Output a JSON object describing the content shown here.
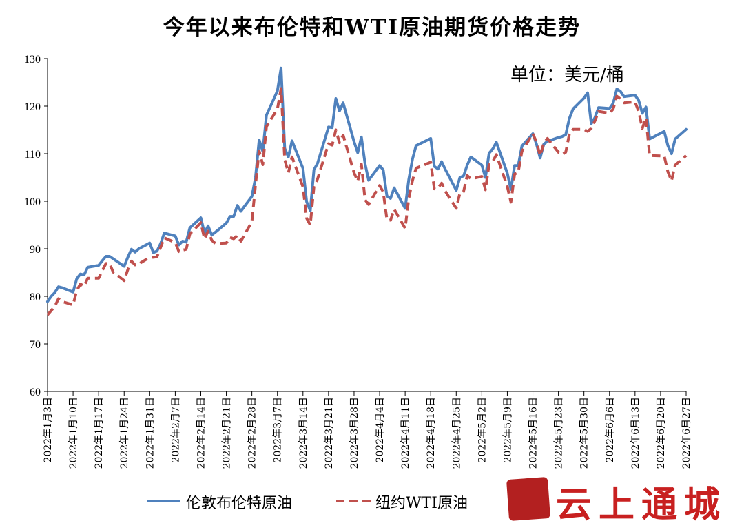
{
  "chart_data": {
    "type": "line",
    "title": "今年以来布伦特和WTI原油期货价格走势",
    "unit": "单位：美元/桶",
    "ylim": [
      60,
      130
    ],
    "yticks": [
      60,
      70,
      80,
      90,
      100,
      110,
      120,
      130
    ],
    "xlim": [
      "2022-01-03",
      "2022-06-27"
    ],
    "xtick_labels": [
      "2022年1月3日",
      "2022年1月10日",
      "2022年1月17日",
      "2022年1月24日",
      "2022年1月31日",
      "2022年2月7日",
      "2022年2月14日",
      "2022年2月21日",
      "2022年2月28日",
      "2022年3月7日",
      "2022年3月14日",
      "2022年3月21日",
      "2022年3月28日",
      "2022年4月4日",
      "2022年4月11日",
      "2022年4月18日",
      "2022年4月25日",
      "2022年5月2日",
      "2022年5月9日",
      "2022年5月16日",
      "2022年5月23日",
      "2022年5月30日",
      "2022年6月6日",
      "2022年6月13日",
      "2022年6月20日",
      "2022年6月27日"
    ],
    "grid": false,
    "legend_position": "bottom",
    "series": [
      {
        "name": "伦敦布伦特原油",
        "color": "#4f81bd",
        "style": "solid",
        "points": [
          [
            "2022-01-03",
            78.9
          ],
          [
            "2022-01-04",
            80.0
          ],
          [
            "2022-01-05",
            80.8
          ],
          [
            "2022-01-06",
            82.0
          ],
          [
            "2022-01-07",
            81.8
          ],
          [
            "2022-01-10",
            80.9
          ],
          [
            "2022-01-11",
            83.7
          ],
          [
            "2022-01-12",
            84.7
          ],
          [
            "2022-01-13",
            84.5
          ],
          [
            "2022-01-14",
            86.1
          ],
          [
            "2022-01-17",
            86.5
          ],
          [
            "2022-01-18",
            87.5
          ],
          [
            "2022-01-19",
            88.4
          ],
          [
            "2022-01-20",
            88.4
          ],
          [
            "2022-01-21",
            87.9
          ],
          [
            "2022-01-24",
            86.3
          ],
          [
            "2022-01-25",
            88.2
          ],
          [
            "2022-01-26",
            89.9
          ],
          [
            "2022-01-27",
            89.3
          ],
          [
            "2022-01-28",
            90.0
          ],
          [
            "2022-01-31",
            91.2
          ],
          [
            "2022-02-01",
            89.2
          ],
          [
            "2022-02-02",
            89.5
          ],
          [
            "2022-02-03",
            91.1
          ],
          [
            "2022-02-04",
            93.3
          ],
          [
            "2022-02-07",
            92.7
          ],
          [
            "2022-02-08",
            90.8
          ],
          [
            "2022-02-09",
            91.6
          ],
          [
            "2022-02-10",
            91.4
          ],
          [
            "2022-02-11",
            94.4
          ],
          [
            "2022-02-14",
            96.5
          ],
          [
            "2022-02-15",
            93.3
          ],
          [
            "2022-02-16",
            94.8
          ],
          [
            "2022-02-17",
            92.9
          ],
          [
            "2022-02-18",
            93.5
          ],
          [
            "2022-02-21",
            95.4
          ],
          [
            "2022-02-22",
            96.8
          ],
          [
            "2022-02-23",
            96.8
          ],
          [
            "2022-02-24",
            99.1
          ],
          [
            "2022-02-25",
            97.9
          ],
          [
            "2022-02-28",
            101.0
          ],
          [
            "2022-03-01",
            104.97
          ],
          [
            "2022-03-02",
            112.9
          ],
          [
            "2022-03-03",
            110.5
          ],
          [
            "2022-03-04",
            118.1
          ],
          [
            "2022-03-07",
            123.2
          ],
          [
            "2022-03-08",
            128.0
          ],
          [
            "2022-03-09",
            111.1
          ],
          [
            "2022-03-10",
            109.3
          ],
          [
            "2022-03-11",
            112.7
          ],
          [
            "2022-03-14",
            106.9
          ],
          [
            "2022-03-15",
            99.9
          ],
          [
            "2022-03-16",
            98.0
          ],
          [
            "2022-03-17",
            106.6
          ],
          [
            "2022-03-18",
            108.0
          ],
          [
            "2022-03-21",
            115.6
          ],
          [
            "2022-03-22",
            115.5
          ],
          [
            "2022-03-23",
            121.6
          ],
          [
            "2022-03-24",
            119.0
          ],
          [
            "2022-03-25",
            120.7
          ],
          [
            "2022-03-28",
            112.5
          ],
          [
            "2022-03-29",
            110.2
          ],
          [
            "2022-03-30",
            113.5
          ],
          [
            "2022-03-31",
            107.9
          ],
          [
            "2022-04-01",
            104.4
          ],
          [
            "2022-04-04",
            107.5
          ],
          [
            "2022-04-05",
            106.6
          ],
          [
            "2022-04-06",
            101.1
          ],
          [
            "2022-04-07",
            100.6
          ],
          [
            "2022-04-08",
            102.8
          ],
          [
            "2022-04-11",
            98.5
          ],
          [
            "2022-04-12",
            104.6
          ],
          [
            "2022-04-13",
            108.8
          ],
          [
            "2022-04-14",
            111.7
          ],
          [
            "2022-04-18",
            113.2
          ],
          [
            "2022-04-19",
            107.3
          ],
          [
            "2022-04-20",
            106.8
          ],
          [
            "2022-04-21",
            108.3
          ],
          [
            "2022-04-22",
            106.7
          ],
          [
            "2022-04-25",
            102.3
          ],
          [
            "2022-04-26",
            105.0
          ],
          [
            "2022-04-27",
            105.3
          ],
          [
            "2022-04-28",
            107.6
          ],
          [
            "2022-04-29",
            109.3
          ],
          [
            "2022-05-02",
            107.6
          ],
          [
            "2022-05-03",
            105.0
          ],
          [
            "2022-05-04",
            110.1
          ],
          [
            "2022-05-05",
            111.0
          ],
          [
            "2022-05-06",
            112.4
          ],
          [
            "2022-05-09",
            105.9
          ],
          [
            "2022-05-10",
            102.5
          ],
          [
            "2022-05-11",
            107.5
          ],
          [
            "2022-05-12",
            107.5
          ],
          [
            "2022-05-13",
            111.6
          ],
          [
            "2022-05-16",
            114.2
          ],
          [
            "2022-05-17",
            112.0
          ],
          [
            "2022-05-18",
            109.1
          ],
          [
            "2022-05-19",
            112.0
          ],
          [
            "2022-05-20",
            112.6
          ],
          [
            "2022-05-23",
            113.4
          ],
          [
            "2022-05-24",
            113.6
          ],
          [
            "2022-05-25",
            114.0
          ],
          [
            "2022-05-26",
            117.4
          ],
          [
            "2022-05-27",
            119.4
          ],
          [
            "2022-05-30",
            121.7
          ],
          [
            "2022-05-31",
            122.8
          ],
          [
            "2022-06-01",
            116.3
          ],
          [
            "2022-06-02",
            117.6
          ],
          [
            "2022-06-03",
            119.7
          ],
          [
            "2022-06-06",
            119.5
          ],
          [
            "2022-06-07",
            120.6
          ],
          [
            "2022-06-08",
            123.6
          ],
          [
            "2022-06-09",
            123.1
          ],
          [
            "2022-06-10",
            122.0
          ],
          [
            "2022-06-13",
            122.3
          ],
          [
            "2022-06-14",
            121.2
          ],
          [
            "2022-06-15",
            118.5
          ],
          [
            "2022-06-16",
            119.8
          ],
          [
            "2022-06-17",
            113.1
          ],
          [
            "2022-06-21",
            114.7
          ],
          [
            "2022-06-22",
            111.7
          ],
          [
            "2022-06-23",
            110.0
          ],
          [
            "2022-06-24",
            113.1
          ],
          [
            "2022-06-27",
            115.1
          ]
        ]
      },
      {
        "name": "纽约WTI原油",
        "color": "#c0504d",
        "style": "dashed",
        "points": [
          [
            "2022-01-03",
            76.1
          ],
          [
            "2022-01-04",
            77.0
          ],
          [
            "2022-01-05",
            77.9
          ],
          [
            "2022-01-06",
            79.5
          ],
          [
            "2022-01-07",
            78.9
          ],
          [
            "2022-01-10",
            78.2
          ],
          [
            "2022-01-11",
            81.2
          ],
          [
            "2022-01-12",
            82.6
          ],
          [
            "2022-01-13",
            82.1
          ],
          [
            "2022-01-14",
            83.8
          ],
          [
            "2022-01-17",
            83.8
          ],
          [
            "2022-01-18",
            85.4
          ],
          [
            "2022-01-19",
            86.9
          ],
          [
            "2022-01-20",
            86.9
          ],
          [
            "2022-01-21",
            85.1
          ],
          [
            "2022-01-24",
            83.3
          ],
          [
            "2022-01-25",
            85.6
          ],
          [
            "2022-01-26",
            87.4
          ],
          [
            "2022-01-27",
            86.6
          ],
          [
            "2022-01-28",
            86.8
          ],
          [
            "2022-01-31",
            88.2
          ],
          [
            "2022-02-01",
            88.2
          ],
          [
            "2022-02-02",
            88.3
          ],
          [
            "2022-02-03",
            90.3
          ],
          [
            "2022-02-04",
            92.3
          ],
          [
            "2022-02-07",
            91.3
          ],
          [
            "2022-02-08",
            89.4
          ],
          [
            "2022-02-09",
            89.7
          ],
          [
            "2022-02-10",
            89.9
          ],
          [
            "2022-02-11",
            93.1
          ],
          [
            "2022-02-14",
            95.5
          ],
          [
            "2022-02-15",
            92.1
          ],
          [
            "2022-02-16",
            93.7
          ],
          [
            "2022-02-17",
            91.8
          ],
          [
            "2022-02-18",
            91.1
          ],
          [
            "2022-02-21",
            91.2
          ],
          [
            "2022-02-22",
            92.4
          ],
          [
            "2022-02-23",
            92.1
          ],
          [
            "2022-02-24",
            92.8
          ],
          [
            "2022-02-25",
            91.6
          ],
          [
            "2022-02-28",
            95.7
          ],
          [
            "2022-03-01",
            103.4
          ],
          [
            "2022-03-02",
            110.6
          ],
          [
            "2022-03-03",
            107.7
          ],
          [
            "2022-03-04",
            115.7
          ],
          [
            "2022-03-07",
            119.4
          ],
          [
            "2022-03-08",
            123.7
          ],
          [
            "2022-03-09",
            108.7
          ],
          [
            "2022-03-10",
            106.0
          ],
          [
            "2022-03-11",
            109.3
          ],
          [
            "2022-03-14",
            103.0
          ],
          [
            "2022-03-15",
            96.4
          ],
          [
            "2022-03-16",
            95.0
          ],
          [
            "2022-03-17",
            102.98
          ],
          [
            "2022-03-18",
            104.7
          ],
          [
            "2022-03-21",
            112.1
          ],
          [
            "2022-03-22",
            111.8
          ],
          [
            "2022-03-23",
            115.0
          ],
          [
            "2022-03-24",
            112.3
          ],
          [
            "2022-03-25",
            113.9
          ],
          [
            "2022-03-28",
            105.96
          ],
          [
            "2022-03-29",
            104.2
          ],
          [
            "2022-03-30",
            107.8
          ],
          [
            "2022-03-31",
            100.3
          ],
          [
            "2022-04-01",
            99.3
          ],
          [
            "2022-04-04",
            103.3
          ],
          [
            "2022-04-05",
            101.96
          ],
          [
            "2022-04-06",
            96.2
          ],
          [
            "2022-04-07",
            96.0
          ],
          [
            "2022-04-08",
            98.3
          ],
          [
            "2022-04-11",
            94.3
          ],
          [
            "2022-04-12",
            100.6
          ],
          [
            "2022-04-13",
            104.3
          ],
          [
            "2022-04-14",
            106.95
          ],
          [
            "2022-04-18",
            108.2
          ],
          [
            "2022-04-19",
            102.6
          ],
          [
            "2022-04-20",
            102.8
          ],
          [
            "2022-04-21",
            103.8
          ],
          [
            "2022-04-22",
            102.1
          ],
          [
            "2022-04-25",
            98.5
          ],
          [
            "2022-04-26",
            101.7
          ],
          [
            "2022-04-27",
            102.02
          ],
          [
            "2022-04-28",
            105.4
          ],
          [
            "2022-04-29",
            104.7
          ],
          [
            "2022-05-02",
            105.2
          ],
          [
            "2022-05-03",
            102.4
          ],
          [
            "2022-05-04",
            107.8
          ],
          [
            "2022-05-05",
            108.3
          ],
          [
            "2022-05-06",
            109.8
          ],
          [
            "2022-05-09",
            103.1
          ],
          [
            "2022-05-10",
            99.8
          ],
          [
            "2022-05-11",
            105.7
          ],
          [
            "2022-05-12",
            106.1
          ],
          [
            "2022-05-13",
            110.5
          ],
          [
            "2022-05-16",
            114.2
          ],
          [
            "2022-05-17",
            112.4
          ],
          [
            "2022-05-18",
            109.6
          ],
          [
            "2022-05-19",
            112.2
          ],
          [
            "2022-05-20",
            113.2
          ],
          [
            "2022-05-23",
            110.3
          ],
          [
            "2022-05-24",
            109.8
          ],
          [
            "2022-05-25",
            110.3
          ],
          [
            "2022-05-26",
            114.1
          ],
          [
            "2022-05-27",
            115.1
          ],
          [
            "2022-05-30",
            115.1
          ],
          [
            "2022-05-31",
            114.7
          ],
          [
            "2022-06-01",
            115.3
          ],
          [
            "2022-06-02",
            116.9
          ],
          [
            "2022-06-03",
            118.9
          ],
          [
            "2022-06-06",
            118.5
          ],
          [
            "2022-06-07",
            119.4
          ],
          [
            "2022-06-08",
            122.1
          ],
          [
            "2022-06-09",
            121.5
          ],
          [
            "2022-06-10",
            120.7
          ],
          [
            "2022-06-13",
            120.9
          ],
          [
            "2022-06-14",
            118.9
          ],
          [
            "2022-06-15",
            115.3
          ],
          [
            "2022-06-16",
            117.6
          ],
          [
            "2022-06-17",
            109.6
          ],
          [
            "2022-06-21",
            109.5
          ],
          [
            "2022-06-22",
            106.2
          ],
          [
            "2022-06-23",
            104.3
          ],
          [
            "2022-06-24",
            107.6
          ],
          [
            "2022-06-27",
            109.6
          ]
        ]
      }
    ]
  },
  "watermark": {
    "text": "云上通城",
    "seal_color": "#b32020"
  }
}
